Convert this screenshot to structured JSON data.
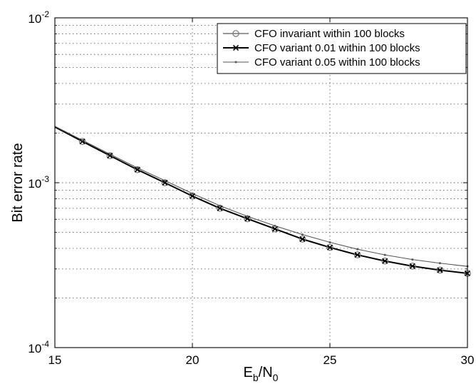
{
  "chart_data": {
    "type": "line",
    "title": "",
    "xlabel": "E_b/N_0",
    "ylabel": "Bit error rate",
    "xlim": [
      15,
      30
    ],
    "ylim": [
      0.0001,
      0.01
    ],
    "yscale": "log",
    "grid": true,
    "legend_position": "top-right",
    "x_ticks": [
      "15",
      "20",
      "25",
      "30"
    ],
    "y_ticks": [
      {
        "mantissa": "10",
        "exponent": "-4",
        "value": 0.0001
      },
      {
        "mantissa": "10",
        "exponent": "-3",
        "value": 0.001
      },
      {
        "mantissa": "10",
        "exponent": "-2",
        "value": 0.01
      }
    ],
    "x": [
      15,
      16,
      17,
      18,
      19,
      20,
      21,
      22,
      23,
      24,
      25,
      26,
      27,
      28,
      29,
      30
    ],
    "series": [
      {
        "name": "CFO invariant within 100 blocks",
        "marker": "circle",
        "color": "#777777",
        "values": [
          0.00218,
          0.00178,
          0.00146,
          0.0012,
          0.001,
          0.00083,
          0.0007,
          0.000605,
          0.000525,
          0.000455,
          0.000405,
          0.000365,
          0.000335,
          0.000312,
          0.000295,
          0.000282
        ]
      },
      {
        "name": "CFO variant 0.01 within 100 blocks",
        "marker": "x",
        "color": "#000000",
        "values": [
          0.00218,
          0.00178,
          0.00146,
          0.0012,
          0.001,
          0.00083,
          0.0007,
          0.000605,
          0.000525,
          0.000455,
          0.000405,
          0.000365,
          0.000335,
          0.000312,
          0.000295,
          0.000282
        ]
      },
      {
        "name": "CFO variant 0.05 within 100 blocks",
        "marker": "dot",
        "color": "#555555",
        "values": [
          0.0022,
          0.00181,
          0.00149,
          0.00123,
          0.00103,
          0.00086,
          0.000725,
          0.000625,
          0.000548,
          0.000485,
          0.000435,
          0.000395,
          0.000365,
          0.000342,
          0.000325,
          0.000311
        ]
      }
    ]
  }
}
